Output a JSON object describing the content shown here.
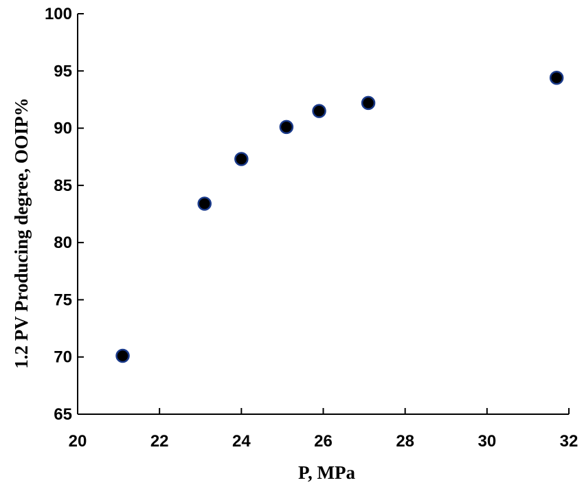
{
  "chart_data": {
    "type": "scatter",
    "title": "",
    "xlabel": "P, MPa",
    "ylabel": "1.2 PV Producing degree, OOIP%",
    "xlim": [
      20,
      32
    ],
    "ylim": [
      65,
      100
    ],
    "x_ticks": [
      20,
      22,
      24,
      26,
      28,
      30,
      32
    ],
    "y_ticks": [
      65,
      70,
      75,
      80,
      85,
      90,
      95,
      100
    ],
    "grid": false,
    "legend": "none",
    "marker_color": "#000000",
    "marker_edge_color": "#1a3a8a",
    "series": [
      {
        "x": [
          21.1,
          23.1,
          24.0,
          25.1,
          25.9,
          27.1,
          31.7
        ],
        "y": [
          70.1,
          83.4,
          87.3,
          90.1,
          91.5,
          92.2,
          94.4
        ]
      }
    ]
  }
}
